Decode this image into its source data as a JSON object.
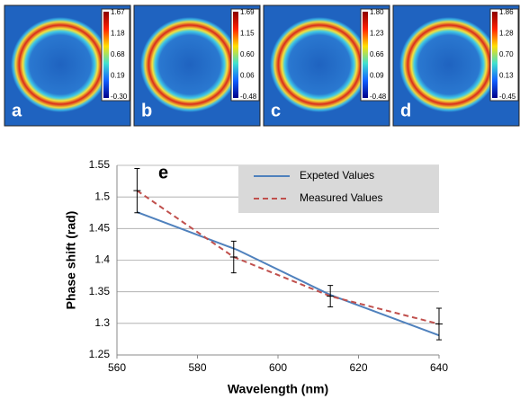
{
  "panels": [
    {
      "letter": "a",
      "colorbar": [
        "1.67",
        "1.18",
        "0.68",
        "0.19",
        "-0.30"
      ]
    },
    {
      "letter": "b",
      "colorbar": [
        "1.69",
        "1.15",
        "0.60",
        "0.06",
        "-0.48"
      ]
    },
    {
      "letter": "c",
      "colorbar": [
        "1.80",
        "1.23",
        "0.66",
        "0.09",
        "-0.48"
      ]
    },
    {
      "letter": "d",
      "colorbar": [
        "1.86",
        "1.28",
        "0.70",
        "0.13",
        "-0.45"
      ]
    }
  ],
  "chart_data": {
    "type": "line",
    "annotation": "e",
    "x_label": "Wavelength (nm)",
    "y_label": "Phase shift (rad)",
    "xlim": [
      560,
      640
    ],
    "xticks": [
      560,
      580,
      600,
      620,
      640
    ],
    "ylim": [
      1.25,
      1.55
    ],
    "yticks": [
      1.25,
      1.3,
      1.35,
      1.4,
      1.45,
      1.5,
      1.55
    ],
    "grid": true,
    "legend": "upper right",
    "series": [
      {
        "name": "Expeted Values",
        "color": "#4f81bd",
        "dash": false,
        "x": [
          565,
          590,
          613,
          640
        ],
        "values": [
          1.476,
          1.416,
          1.345,
          1.281
        ]
      },
      {
        "name": "Measured Values",
        "color": "#c0504d",
        "dash": true,
        "x": [
          565,
          589,
          613,
          640
        ],
        "values": [
          1.51,
          1.405,
          1.343,
          1.299
        ],
        "errors": [
          0.035,
          0.025,
          0.017,
          0.025
        ]
      }
    ]
  }
}
